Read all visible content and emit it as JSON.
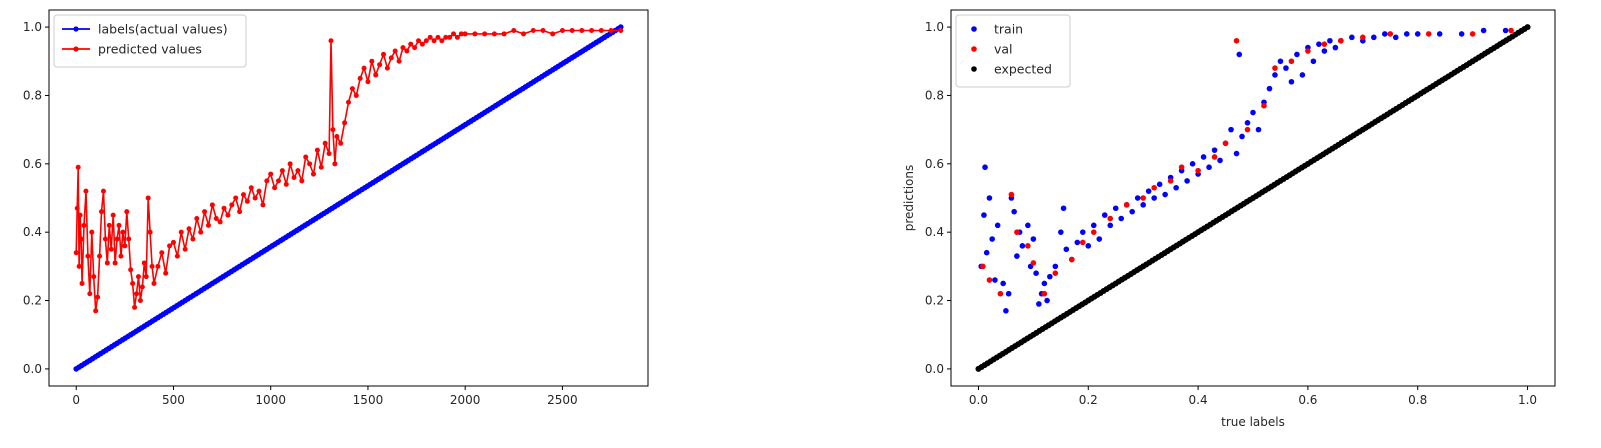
{
  "chart_data": [
    {
      "type": "line",
      "title": "",
      "xlabel": "",
      "ylabel": "",
      "xlim": [
        -140,
        2940
      ],
      "ylim": [
        -0.05,
        1.05
      ],
      "xticks": [
        0,
        500,
        1000,
        1500,
        2000,
        2500
      ],
      "yticks": [
        0.0,
        0.2,
        0.4,
        0.6,
        0.8,
        1.0
      ],
      "xtick_labels": [
        "0",
        "500",
        "1000",
        "1500",
        "2000",
        "2500"
      ],
      "ytick_labels": [
        "0.0",
        "0.2",
        "0.4",
        "0.6",
        "0.8",
        "1.0"
      ],
      "legend": {
        "location": "upper-left",
        "entries": [
          "labels(actual values)",
          "predicted values"
        ]
      },
      "grid": false,
      "series": [
        {
          "name": "labels(actual values)",
          "color": "#0000ff",
          "marker": "dot",
          "x": [
            0,
            2800
          ],
          "y": [
            0.0,
            1.0
          ]
        },
        {
          "name": "predicted values",
          "color": "#ff0000",
          "marker": "dot",
          "x": [
            0,
            5,
            10,
            15,
            20,
            25,
            30,
            40,
            50,
            60,
            70,
            80,
            90,
            100,
            110,
            120,
            130,
            140,
            150,
            160,
            170,
            180,
            190,
            200,
            210,
            220,
            230,
            240,
            250,
            260,
            270,
            280,
            290,
            300,
            310,
            320,
            330,
            340,
            350,
            360,
            370,
            380,
            390,
            400,
            420,
            440,
            460,
            480,
            500,
            520,
            540,
            560,
            580,
            600,
            620,
            640,
            660,
            680,
            700,
            720,
            740,
            760,
            780,
            800,
            820,
            840,
            860,
            880,
            900,
            920,
            940,
            960,
            980,
            1000,
            1020,
            1040,
            1060,
            1080,
            1100,
            1120,
            1140,
            1160,
            1180,
            1200,
            1220,
            1240,
            1260,
            1280,
            1300,
            1310,
            1320,
            1330,
            1340,
            1360,
            1380,
            1400,
            1420,
            1440,
            1460,
            1480,
            1500,
            1520,
            1540,
            1560,
            1580,
            1600,
            1620,
            1640,
            1660,
            1680,
            1700,
            1720,
            1740,
            1760,
            1780,
            1800,
            1820,
            1840,
            1860,
            1880,
            1900,
            1920,
            1940,
            1960,
            1980,
            2000,
            2050,
            2100,
            2150,
            2200,
            2250,
            2300,
            2350,
            2400,
            2450,
            2500,
            2550,
            2600,
            2650,
            2700,
            2750,
            2800
          ],
          "y": [
            0.34,
            0.47,
            0.59,
            0.3,
            0.45,
            0.38,
            0.25,
            0.42,
            0.52,
            0.33,
            0.22,
            0.4,
            0.27,
            0.17,
            0.21,
            0.33,
            0.46,
            0.52,
            0.38,
            0.31,
            0.42,
            0.35,
            0.45,
            0.31,
            0.38,
            0.42,
            0.33,
            0.4,
            0.36,
            0.46,
            0.38,
            0.29,
            0.25,
            0.18,
            0.22,
            0.27,
            0.2,
            0.24,
            0.31,
            0.27,
            0.5,
            0.4,
            0.3,
            0.25,
            0.3,
            0.34,
            0.28,
            0.36,
            0.37,
            0.33,
            0.4,
            0.35,
            0.41,
            0.38,
            0.44,
            0.4,
            0.46,
            0.42,
            0.48,
            0.44,
            0.43,
            0.47,
            0.45,
            0.48,
            0.5,
            0.46,
            0.51,
            0.49,
            0.53,
            0.5,
            0.52,
            0.48,
            0.55,
            0.57,
            0.53,
            0.55,
            0.58,
            0.54,
            0.6,
            0.56,
            0.58,
            0.55,
            0.62,
            0.6,
            0.57,
            0.64,
            0.59,
            0.66,
            0.63,
            0.96,
            0.7,
            0.6,
            0.68,
            0.66,
            0.72,
            0.78,
            0.82,
            0.8,
            0.85,
            0.88,
            0.84,
            0.9,
            0.86,
            0.89,
            0.92,
            0.88,
            0.91,
            0.93,
            0.9,
            0.94,
            0.93,
            0.95,
            0.94,
            0.96,
            0.95,
            0.96,
            0.97,
            0.96,
            0.97,
            0.96,
            0.97,
            0.97,
            0.98,
            0.97,
            0.98,
            0.98,
            0.98,
            0.98,
            0.98,
            0.98,
            0.99,
            0.98,
            0.99,
            0.99,
            0.98,
            0.99,
            0.99,
            0.99,
            0.99,
            0.99,
            0.99,
            0.99
          ]
        }
      ]
    },
    {
      "type": "scatter",
      "title": "",
      "xlabel": "true labels",
      "ylabel": "predictions",
      "xlim": [
        -0.05,
        1.05
      ],
      "ylim": [
        -0.05,
        1.05
      ],
      "xticks": [
        0.0,
        0.2,
        0.4,
        0.6,
        0.8,
        1.0
      ],
      "yticks": [
        0.0,
        0.2,
        0.4,
        0.6,
        0.8,
        1.0
      ],
      "xtick_labels": [
        "0.0",
        "0.2",
        "0.4",
        "0.6",
        "0.8",
        "1.0"
      ],
      "ytick_labels": [
        "0.0",
        "0.2",
        "0.4",
        "0.6",
        "0.8",
        "1.0"
      ],
      "legend": {
        "location": "upper-left",
        "entries": [
          "train",
          "val",
          "expected"
        ]
      },
      "grid": false,
      "series": [
        {
          "name": "train",
          "color": "#0000ff",
          "points": [
            [
              0.005,
              0.3
            ],
            [
              0.01,
              0.45
            ],
            [
              0.012,
              0.59
            ],
            [
              0.015,
              0.34
            ],
            [
              0.02,
              0.5
            ],
            [
              0.025,
              0.38
            ],
            [
              0.03,
              0.26
            ],
            [
              0.035,
              0.42
            ],
            [
              0.045,
              0.25
            ],
            [
              0.05,
              0.17
            ],
            [
              0.055,
              0.22
            ],
            [
              0.06,
              0.5
            ],
            [
              0.065,
              0.46
            ],
            [
              0.07,
              0.33
            ],
            [
              0.075,
              0.4
            ],
            [
              0.08,
              0.36
            ],
            [
              0.09,
              0.42
            ],
            [
              0.095,
              0.3
            ],
            [
              0.1,
              0.38
            ],
            [
              0.105,
              0.28
            ],
            [
              0.11,
              0.19
            ],
            [
              0.115,
              0.22
            ],
            [
              0.12,
              0.25
            ],
            [
              0.125,
              0.2
            ],
            [
              0.13,
              0.27
            ],
            [
              0.14,
              0.3
            ],
            [
              0.15,
              0.4
            ],
            [
              0.155,
              0.47
            ],
            [
              0.16,
              0.35
            ],
            [
              0.17,
              0.32
            ],
            [
              0.18,
              0.37
            ],
            [
              0.19,
              0.4
            ],
            [
              0.2,
              0.36
            ],
            [
              0.21,
              0.42
            ],
            [
              0.22,
              0.38
            ],
            [
              0.23,
              0.45
            ],
            [
              0.24,
              0.42
            ],
            [
              0.25,
              0.47
            ],
            [
              0.26,
              0.44
            ],
            [
              0.27,
              0.48
            ],
            [
              0.28,
              0.46
            ],
            [
              0.29,
              0.5
            ],
            [
              0.3,
              0.48
            ],
            [
              0.31,
              0.52
            ],
            [
              0.32,
              0.5
            ],
            [
              0.33,
              0.54
            ],
            [
              0.34,
              0.51
            ],
            [
              0.35,
              0.56
            ],
            [
              0.36,
              0.53
            ],
            [
              0.37,
              0.58
            ],
            [
              0.38,
              0.55
            ],
            [
              0.39,
              0.6
            ],
            [
              0.4,
              0.57
            ],
            [
              0.41,
              0.62
            ],
            [
              0.42,
              0.59
            ],
            [
              0.43,
              0.64
            ],
            [
              0.44,
              0.61
            ],
            [
              0.45,
              0.66
            ],
            [
              0.46,
              0.7
            ],
            [
              0.47,
              0.63
            ],
            [
              0.475,
              0.92
            ],
            [
              0.48,
              0.68
            ],
            [
              0.49,
              0.72
            ],
            [
              0.5,
              0.75
            ],
            [
              0.51,
              0.7
            ],
            [
              0.52,
              0.78
            ],
            [
              0.53,
              0.82
            ],
            [
              0.54,
              0.86
            ],
            [
              0.55,
              0.9
            ],
            [
              0.56,
              0.88
            ],
            [
              0.57,
              0.84
            ],
            [
              0.58,
              0.92
            ],
            [
              0.59,
              0.86
            ],
            [
              0.6,
              0.94
            ],
            [
              0.61,
              0.9
            ],
            [
              0.62,
              0.95
            ],
            [
              0.63,
              0.93
            ],
            [
              0.64,
              0.96
            ],
            [
              0.65,
              0.94
            ],
            [
              0.66,
              0.96
            ],
            [
              0.68,
              0.97
            ],
            [
              0.7,
              0.96
            ],
            [
              0.72,
              0.97
            ],
            [
              0.74,
              0.98
            ],
            [
              0.76,
              0.97
            ],
            [
              0.78,
              0.98
            ],
            [
              0.8,
              0.98
            ],
            [
              0.84,
              0.98
            ],
            [
              0.88,
              0.98
            ],
            [
              0.92,
              0.99
            ],
            [
              0.96,
              0.99
            ],
            [
              0.99,
              0.99
            ]
          ]
        },
        {
          "name": "val",
          "color": "#ff0000",
          "points": [
            [
              0.008,
              0.3
            ],
            [
              0.02,
              0.26
            ],
            [
              0.04,
              0.22
            ],
            [
              0.06,
              0.51
            ],
            [
              0.07,
              0.4
            ],
            [
              0.09,
              0.36
            ],
            [
              0.1,
              0.31
            ],
            [
              0.12,
              0.22
            ],
            [
              0.14,
              0.28
            ],
            [
              0.17,
              0.32
            ],
            [
              0.19,
              0.37
            ],
            [
              0.21,
              0.4
            ],
            [
              0.24,
              0.44
            ],
            [
              0.27,
              0.48
            ],
            [
              0.3,
              0.5
            ],
            [
              0.32,
              0.53
            ],
            [
              0.35,
              0.55
            ],
            [
              0.37,
              0.59
            ],
            [
              0.4,
              0.58
            ],
            [
              0.43,
              0.62
            ],
            [
              0.45,
              0.66
            ],
            [
              0.47,
              0.96
            ],
            [
              0.49,
              0.7
            ],
            [
              0.52,
              0.77
            ],
            [
              0.54,
              0.88
            ],
            [
              0.57,
              0.9
            ],
            [
              0.6,
              0.93
            ],
            [
              0.63,
              0.95
            ],
            [
              0.66,
              0.96
            ],
            [
              0.7,
              0.97
            ],
            [
              0.75,
              0.98
            ],
            [
              0.82,
              0.98
            ],
            [
              0.9,
              0.98
            ],
            [
              0.97,
              0.99
            ]
          ]
        },
        {
          "name": "expected",
          "color": "#000000",
          "x": [
            0.0,
            1.0
          ],
          "y": [
            0.0,
            1.0
          ]
        }
      ]
    }
  ]
}
